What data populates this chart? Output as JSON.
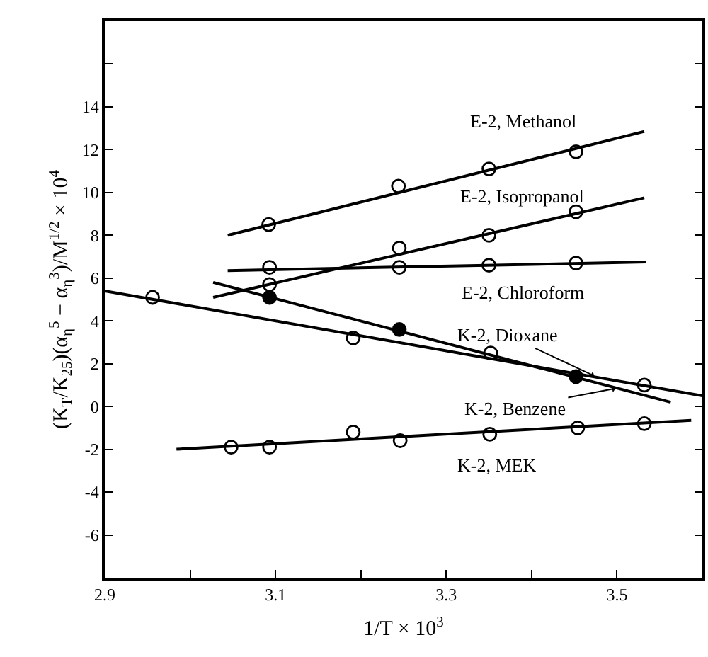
{
  "chart_data": {
    "type": "scatter",
    "xlabel": "1/T × 10$^{3}$",
    "ylabel": "(K$_{T}$/K$_{25}$)(α$_{η}$$^{5}$ − α$_{η}$$^{3}$)/M$^{1/2}$ × 10$^{4}$",
    "xlim": [
      2.9,
      3.6
    ],
    "xticks": [
      2.9,
      {
        "value": 3.0,
        "label": null
      },
      3.1,
      {
        "value": 3.2,
        "label": null
      },
      3.3,
      {
        "value": 3.4,
        "label": null
      },
      3.5
    ],
    "ylim": [
      -8,
      18
    ],
    "yticks": [
      -6,
      -4,
      -2,
      0,
      2,
      4,
      6,
      8,
      10,
      12,
      14,
      {
        "value": 16,
        "label": null
      }
    ],
    "grid": false,
    "legend": false,
    "marker": "circle",
    "series": [
      {
        "color": "#ffffff",
        "x": [
          3.092,
          3.244,
          3.35,
          3.452
        ],
        "values": [
          8.5,
          10.3,
          11.1,
          11.9
        ]
      },
      {
        "type": "line",
        "color": "#000000",
        "marker": "none",
        "line_style": "solid",
        "x": [
          3.044,
          3.532
        ],
        "values": [
          8.0,
          12.85
        ]
      },
      {
        "color": "#ffffff",
        "x": [
          3.093,
          3.245,
          3.35,
          3.452
        ],
        "values": [
          5.7,
          7.4,
          8.0,
          9.1
        ]
      },
      {
        "type": "line",
        "color": "#000000",
        "marker": "none",
        "line_style": "solid",
        "x": [
          3.027,
          3.532
        ],
        "values": [
          5.1,
          9.75
        ]
      },
      {
        "color": "#ffffff",
        "x": [
          3.093,
          3.245,
          3.35,
          3.452
        ],
        "values": [
          6.5,
          6.5,
          6.6,
          6.7
        ]
      },
      {
        "type": "line",
        "color": "#000000",
        "marker": "none",
        "line_style": "solid",
        "x": [
          3.044,
          3.534
        ],
        "values": [
          6.35,
          6.75
        ]
      },
      {
        "color": "#ffffff",
        "x": [
          2.956,
          3.191,
          3.352,
          3.532
        ],
        "values": [
          5.1,
          3.2,
          2.5,
          1.0
        ]
      },
      {
        "type": "line",
        "color": "#000000",
        "marker": "none",
        "line_style": "solid",
        "x": [
          2.9,
          3.6
        ],
        "values": [
          5.4,
          0.5
        ]
      },
      {
        "color": "#000000",
        "x": [
          3.093,
          3.245,
          3.452
        ],
        "values": [
          5.1,
          3.6,
          1.4
        ]
      },
      {
        "type": "line",
        "color": "#000000",
        "marker": "none",
        "line_style": "solid",
        "x": [
          3.027,
          3.563
        ],
        "values": [
          5.8,
          0.2
        ]
      },
      {
        "color": "#ffffff",
        "x": [
          3.048,
          3.093,
          3.191,
          3.246,
          3.351,
          3.454,
          3.532
        ],
        "values": [
          -1.9,
          -1.9,
          -1.2,
          -1.6,
          -1.3,
          -1.0,
          -0.8
        ]
      },
      {
        "type": "line",
        "color": "#000000",
        "marker": "none",
        "line_style": "solid",
        "x": [
          2.984,
          3.587
        ],
        "values": [
          -2.0,
          -0.65
        ]
      }
    ],
    "annotations": [
      {
        "text": "E-2, Methanol",
        "x": 3.39,
        "y": 11.4
      },
      {
        "text": "E-2, Isopropanol",
        "x": 3.39,
        "y": 8.5
      },
      {
        "text": "E-2, Chloroform",
        "x": 3.39,
        "y": 6.6
      },
      {
        "text": "K-2, Dioxane",
        "x": 3.475,
        "y": 1.4
      },
      {
        "text": "K-2, Benzene",
        "x": 3.5,
        "y": 0.86
      },
      {
        "text": "K-2, MEK",
        "x": 3.36,
        "y": -1.2
      }
    ]
  }
}
